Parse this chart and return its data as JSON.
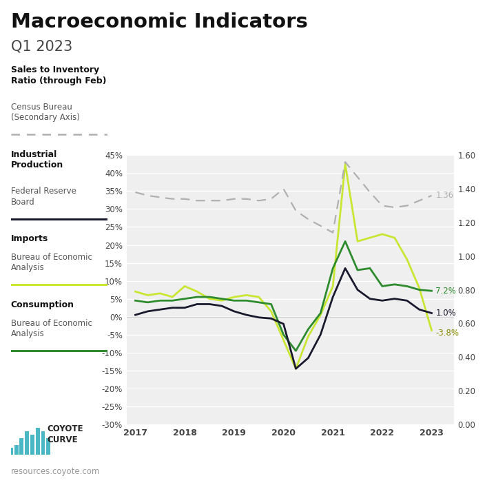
{
  "title": "Macroeconomic Indicators",
  "subtitle": "Q1 2023",
  "background_color": "#ffffff",
  "plot_bg_color": "#efefef",
  "series": {
    "ip": {
      "color": "#1a1a2e",
      "linewidth": 2.0,
      "x": [
        2017.0,
        2017.25,
        2017.5,
        2017.75,
        2018.0,
        2018.25,
        2018.5,
        2018.75,
        2019.0,
        2019.25,
        2019.5,
        2019.75,
        2020.0,
        2020.25,
        2020.5,
        2020.75,
        2021.0,
        2021.25,
        2021.5,
        2021.75,
        2022.0,
        2022.25,
        2022.5,
        2022.75,
        2023.0
      ],
      "y": [
        0.5,
        1.5,
        2.0,
        2.5,
        2.5,
        3.5,
        3.5,
        3.0,
        1.5,
        0.5,
        -0.2,
        -0.5,
        -2.0,
        -14.5,
        -11.5,
        -5.0,
        5.5,
        13.5,
        7.5,
        5.0,
        4.5,
        5.0,
        4.5,
        2.0,
        1.0
      ]
    },
    "imports": {
      "color": "#c8e632",
      "linewidth": 2.0,
      "x": [
        2017.0,
        2017.25,
        2017.5,
        2017.75,
        2018.0,
        2018.25,
        2018.5,
        2018.75,
        2019.0,
        2019.25,
        2019.5,
        2019.75,
        2020.0,
        2020.25,
        2020.5,
        2020.75,
        2021.0,
        2021.25,
        2021.5,
        2021.75,
        2022.0,
        2022.25,
        2022.5,
        2022.75,
        2023.0
      ],
      "y": [
        7.0,
        6.0,
        6.5,
        5.5,
        8.5,
        7.0,
        5.0,
        4.5,
        5.5,
        6.0,
        5.5,
        1.5,
        -6.5,
        -14.5,
        -5.5,
        0.5,
        8.5,
        42.5,
        21.0,
        22.0,
        23.0,
        22.0,
        16.0,
        8.0,
        -3.8
      ]
    },
    "consumption": {
      "color": "#2d8a2d",
      "linewidth": 2.0,
      "x": [
        2017.0,
        2017.25,
        2017.5,
        2017.75,
        2018.0,
        2018.25,
        2018.5,
        2018.75,
        2019.0,
        2019.25,
        2019.5,
        2019.75,
        2020.0,
        2020.25,
        2020.5,
        2020.75,
        2021.0,
        2021.25,
        2021.5,
        2021.75,
        2022.0,
        2022.25,
        2022.5,
        2022.75,
        2023.0
      ],
      "y": [
        4.5,
        4.0,
        4.5,
        4.5,
        5.0,
        5.5,
        5.5,
        5.0,
        4.5,
        4.5,
        4.0,
        3.5,
        -5.0,
        -9.5,
        -3.5,
        1.0,
        13.5,
        21.0,
        13.0,
        13.5,
        8.5,
        9.0,
        8.5,
        7.5,
        7.2
      ]
    },
    "sir": {
      "color": "#b0b0b0",
      "linewidth": 1.6,
      "x": [
        2017.0,
        2017.25,
        2017.5,
        2017.75,
        2018.0,
        2018.25,
        2018.5,
        2018.75,
        2019.0,
        2019.25,
        2019.5,
        2019.75,
        2020.0,
        2020.25,
        2020.5,
        2020.75,
        2021.0,
        2021.25,
        2021.5,
        2021.75,
        2022.0,
        2022.25,
        2022.5,
        2022.75,
        2023.0
      ],
      "y": [
        1.38,
        1.36,
        1.35,
        1.34,
        1.34,
        1.33,
        1.33,
        1.33,
        1.34,
        1.34,
        1.33,
        1.34,
        1.4,
        1.27,
        1.22,
        1.18,
        1.14,
        1.56,
        1.47,
        1.38,
        1.3,
        1.29,
        1.3,
        1.33,
        1.36
      ]
    }
  },
  "left_ylim": [
    -30,
    45
  ],
  "right_ylim": [
    0.0,
    1.6
  ],
  "left_yticks": [
    -30,
    -25,
    -20,
    -15,
    -10,
    -5,
    0,
    5,
    10,
    15,
    20,
    25,
    30,
    35,
    40,
    45
  ],
  "right_yticks": [
    0.0,
    0.2,
    0.4,
    0.6,
    0.8,
    1.0,
    1.2,
    1.4,
    1.6
  ],
  "xlim": [
    2016.82,
    2023.45
  ],
  "xticks": [
    2017,
    2018,
    2019,
    2020,
    2021,
    2022,
    2023
  ],
  "footer": "resources.coyote.com"
}
